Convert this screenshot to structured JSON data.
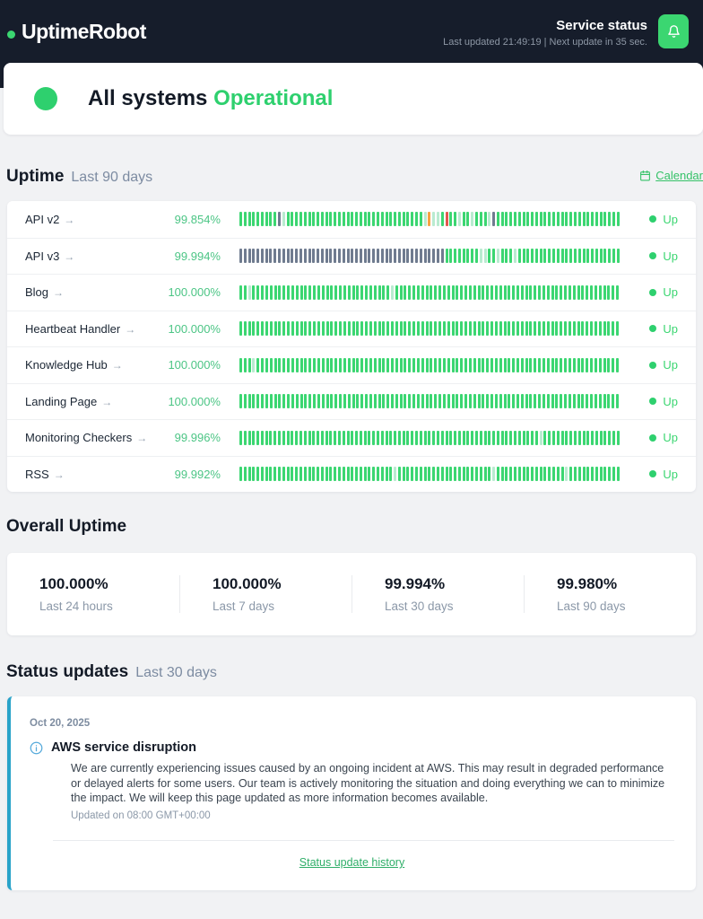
{
  "header": {
    "logo": "UptimeRobot",
    "title": "Service status",
    "updated_line": "Last updated 21:49:19 | Next update in 35 sec."
  },
  "banner": {
    "prefix": "All systems",
    "status": "Operational"
  },
  "uptime_section": {
    "title": "Uptime",
    "subtitle": "Last 90 days",
    "calendar_link": "Calendar",
    "arrow": "→",
    "monitors": [
      {
        "name": "API v2",
        "uptime": "99.854%",
        "status": "Up",
        "bars": "gggggggggdlgggggggggggggggggggggggggggggggglollgrgglgglgggldggggggggggggggggggggggggggggg"
      },
      {
        "name": "API v3",
        "uptime": "99.994%",
        "status": "Up",
        "bars": "ddddddddddddddddddddddddddddddddddddddddddddddddggggggggllgglggglgggggggggggggggggggggggg"
      },
      {
        "name": "Blog",
        "uptime": "100.000%",
        "status": "Up",
        "bars": "gglgggggggggggggggggggggggggggggggglgggggggggggggggggggggggggggggggggggggggggggggggggggg"
      },
      {
        "name": "Heartbeat Handler",
        "uptime": "100.000%",
        "status": "Up",
        "bars": "gggggggggggggggggggggggggggggggggggggggggggggggggggggggggggggggggggggggggggggggggggggggg"
      },
      {
        "name": "Knowledge Hub",
        "uptime": "100.000%",
        "status": "Up",
        "bars": "ggglgggggggggggggggggggggggggggggggggggggggggggggggggggggggggggggggggggggggggggggggggggg"
      },
      {
        "name": "Landing Page",
        "uptime": "100.000%",
        "status": "Up",
        "bars": "gggggggggggggggggggggggggggggggggggggggggggggggggggggggggggggggggggggggggggggggggggggggg"
      },
      {
        "name": "Monitoring Checkers",
        "uptime": "99.996%",
        "status": "Up",
        "bars": "gggggggggggggggggggggggggggggggggggggggggggggggggggggggggggggggggggggglgggggggggggggggggg"
      },
      {
        "name": "RSS",
        "uptime": "99.992%",
        "status": "Up",
        "bars": "gggggggggggggggggggggggggggggggggggglgggggggggggggggggggggglgggggggggggggggglgggggggggggg"
      }
    ]
  },
  "overall": {
    "title": "Overall Uptime",
    "stats": [
      {
        "value": "100.000%",
        "label": "Last 24 hours"
      },
      {
        "value": "100.000%",
        "label": "Last 7 days"
      },
      {
        "value": "99.994%",
        "label": "Last 30 days"
      },
      {
        "value": "99.980%",
        "label": "Last 90 days"
      }
    ]
  },
  "status_updates": {
    "title": "Status updates",
    "subtitle": "Last 30 days",
    "incident": {
      "date": "Oct 20, 2025",
      "title": "AWS service disruption",
      "body": "We are currently experiencing issues caused by an ongoing incident at AWS. This may result in degraded performance or delayed alerts for some users. Our team is actively monitoring the situation and doing everything we can to minimize the impact. We will keep this page updated as more information becomes available.",
      "updated": "Updated on 08:00 GMT+00:00"
    },
    "history_link": "Status update history"
  },
  "colors": {
    "accent_green": "#3bd671",
    "status_blue": "#29a3c9",
    "header_bg": "#161d2b",
    "bar_map": {
      "g": "#3bd671",
      "l": "#b9ebd0",
      "o": "#f7a244",
      "r": "#e2584e",
      "d": "#6f7b8f"
    }
  }
}
